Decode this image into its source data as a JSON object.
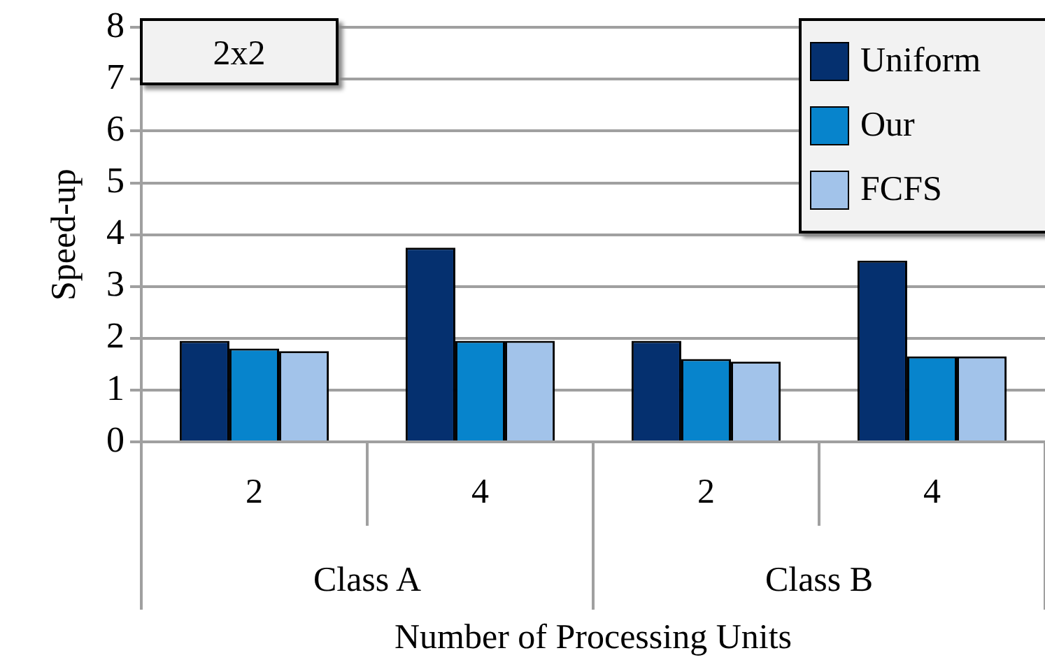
{
  "chart_data": {
    "type": "bar",
    "title": "2x2",
    "ylabel": "Speed-up",
    "xlabel": "Number of Processing Units",
    "categories": [
      "2",
      "4",
      "2",
      "4"
    ],
    "annotations": [
      "Class A",
      "Class B"
    ],
    "series": [
      {
        "name": "Uniform",
        "color": "#05306f",
        "values": [
          1.95,
          3.75,
          1.95,
          3.5
        ]
      },
      {
        "name": "Our",
        "color": "#0784cc",
        "values": [
          1.8,
          1.95,
          1.6,
          1.65
        ]
      },
      {
        "name": "FCFS",
        "color": "#a2c3ea",
        "values": [
          1.75,
          1.95,
          1.55,
          1.65
        ]
      }
    ],
    "ylim": [
      0,
      8
    ],
    "yticks": [
      0,
      1,
      2,
      3,
      4,
      5,
      6,
      7,
      8
    ],
    "grid": "y",
    "legend": "top right"
  }
}
